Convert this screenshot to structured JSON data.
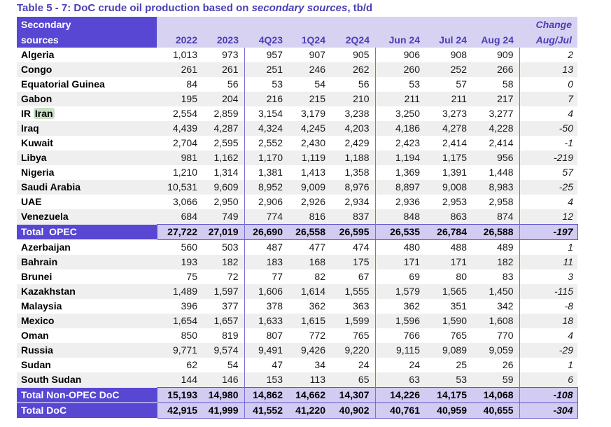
{
  "title": {
    "prefix": "Table 5 - 7: DoC crude oil production based on ",
    "italic": "secondary sources",
    "suffix": ", tb/d"
  },
  "header": {
    "label_line1": "Secondary",
    "label_line2": "sources",
    "change_line1": "Change",
    "change_line2": "Aug/Jul",
    "columns": [
      "2022",
      "2023",
      "4Q23",
      "1Q24",
      "2Q24",
      "Jun 24",
      "Jul 24",
      "Aug 24"
    ]
  },
  "colors": {
    "header_purple": "#5747d2",
    "header_lavender": "#d8d2f2",
    "total_lavender": "#d2cbf2",
    "stripe_gray": "#efefef",
    "separator_line": "#7b70d8",
    "title_text": "#4a3fb3",
    "header_text": "#4a3fb5",
    "iran_highlight": "#c9e0c4"
  },
  "table": {
    "rows": [
      {
        "name": "Algeria",
        "type": "data",
        "values": [
          "1,013",
          "973",
          "957",
          "907",
          "905",
          "906",
          "908",
          "909"
        ],
        "change": "2"
      },
      {
        "name": "Congo",
        "type": "data",
        "values": [
          "261",
          "261",
          "251",
          "246",
          "262",
          "260",
          "252",
          "266"
        ],
        "change": "13"
      },
      {
        "name": "Equatorial Guinea",
        "type": "data",
        "values": [
          "84",
          "56",
          "53",
          "54",
          "56",
          "53",
          "57",
          "58"
        ],
        "change": "0"
      },
      {
        "name": "Gabon",
        "type": "data",
        "values": [
          "195",
          "204",
          "216",
          "215",
          "210",
          "211",
          "211",
          "217"
        ],
        "change": "7"
      },
      {
        "name": "IR Iran",
        "type": "data",
        "highlight": "Iran",
        "values": [
          "2,554",
          "2,859",
          "3,154",
          "3,179",
          "3,238",
          "3,250",
          "3,273",
          "3,277"
        ],
        "change": "4"
      },
      {
        "name": "Iraq",
        "type": "data",
        "values": [
          "4,439",
          "4,287",
          "4,324",
          "4,245",
          "4,203",
          "4,186",
          "4,278",
          "4,228"
        ],
        "change": "-50"
      },
      {
        "name": "Kuwait",
        "type": "data",
        "values": [
          "2,704",
          "2,595",
          "2,552",
          "2,430",
          "2,429",
          "2,423",
          "2,414",
          "2,414"
        ],
        "change": "-1"
      },
      {
        "name": "Libya",
        "type": "data",
        "values": [
          "981",
          "1,162",
          "1,170",
          "1,119",
          "1,188",
          "1,194",
          "1,175",
          "956"
        ],
        "change": "-219"
      },
      {
        "name": "Nigeria",
        "type": "data",
        "values": [
          "1,210",
          "1,314",
          "1,381",
          "1,413",
          "1,358",
          "1,369",
          "1,391",
          "1,448"
        ],
        "change": "57"
      },
      {
        "name": "Saudi Arabia",
        "type": "data",
        "values": [
          "10,531",
          "9,609",
          "8,952",
          "9,009",
          "8,976",
          "8,897",
          "9,008",
          "8,983"
        ],
        "change": "-25"
      },
      {
        "name": "UAE",
        "type": "data",
        "values": [
          "3,066",
          "2,950",
          "2,906",
          "2,926",
          "2,934",
          "2,936",
          "2,953",
          "2,958"
        ],
        "change": "4"
      },
      {
        "name": "Venezuela",
        "type": "data",
        "values": [
          "684",
          "749",
          "774",
          "816",
          "837",
          "848",
          "863",
          "874"
        ],
        "change": "12"
      },
      {
        "name": "Total  OPEC",
        "type": "total",
        "values": [
          "27,722",
          "27,019",
          "26,690",
          "26,558",
          "26,595",
          "26,535",
          "26,784",
          "26,588"
        ],
        "change": "-197"
      },
      {
        "name": "Azerbaijan",
        "type": "data",
        "values": [
          "560",
          "503",
          "487",
          "477",
          "474",
          "480",
          "488",
          "489"
        ],
        "change": "1"
      },
      {
        "name": "Bahrain",
        "type": "data",
        "values": [
          "193",
          "182",
          "183",
          "168",
          "175",
          "171",
          "171",
          "182"
        ],
        "change": "11"
      },
      {
        "name": "Brunei",
        "type": "data",
        "values": [
          "75",
          "72",
          "77",
          "82",
          "67",
          "69",
          "80",
          "83"
        ],
        "change": "3"
      },
      {
        "name": "Kazakhstan",
        "type": "data",
        "values": [
          "1,489",
          "1,597",
          "1,606",
          "1,614",
          "1,555",
          "1,579",
          "1,565",
          "1,450"
        ],
        "change": "-115"
      },
      {
        "name": "Malaysia",
        "type": "data",
        "values": [
          "396",
          "377",
          "378",
          "362",
          "363",
          "362",
          "351",
          "342"
        ],
        "change": "-8"
      },
      {
        "name": "Mexico",
        "type": "data",
        "values": [
          "1,654",
          "1,657",
          "1,633",
          "1,615",
          "1,599",
          "1,596",
          "1,590",
          "1,608"
        ],
        "change": "18"
      },
      {
        "name": "Oman",
        "type": "data",
        "values": [
          "850",
          "819",
          "807",
          "772",
          "765",
          "766",
          "765",
          "770"
        ],
        "change": "4"
      },
      {
        "name": "Russia",
        "type": "data",
        "values": [
          "9,771",
          "9,574",
          "9,491",
          "9,426",
          "9,220",
          "9,115",
          "9,089",
          "9,059"
        ],
        "change": "-29"
      },
      {
        "name": "Sudan",
        "type": "data",
        "values": [
          "62",
          "54",
          "47",
          "34",
          "24",
          "24",
          "25",
          "26"
        ],
        "change": "1"
      },
      {
        "name": "South Sudan",
        "type": "data",
        "values": [
          "144",
          "146",
          "153",
          "113",
          "65",
          "63",
          "53",
          "59"
        ],
        "change": "6"
      },
      {
        "name": "Total Non-OPEC DoC",
        "type": "total",
        "values": [
          "15,193",
          "14,980",
          "14,862",
          "14,662",
          "14,307",
          "14,226",
          "14,175",
          "14,068"
        ],
        "change": "-108"
      },
      {
        "name": "Total DoC",
        "type": "total",
        "values": [
          "42,915",
          "41,999",
          "41,552",
          "41,220",
          "40,902",
          "40,761",
          "40,959",
          "40,655"
        ],
        "change": "-304"
      }
    ]
  }
}
